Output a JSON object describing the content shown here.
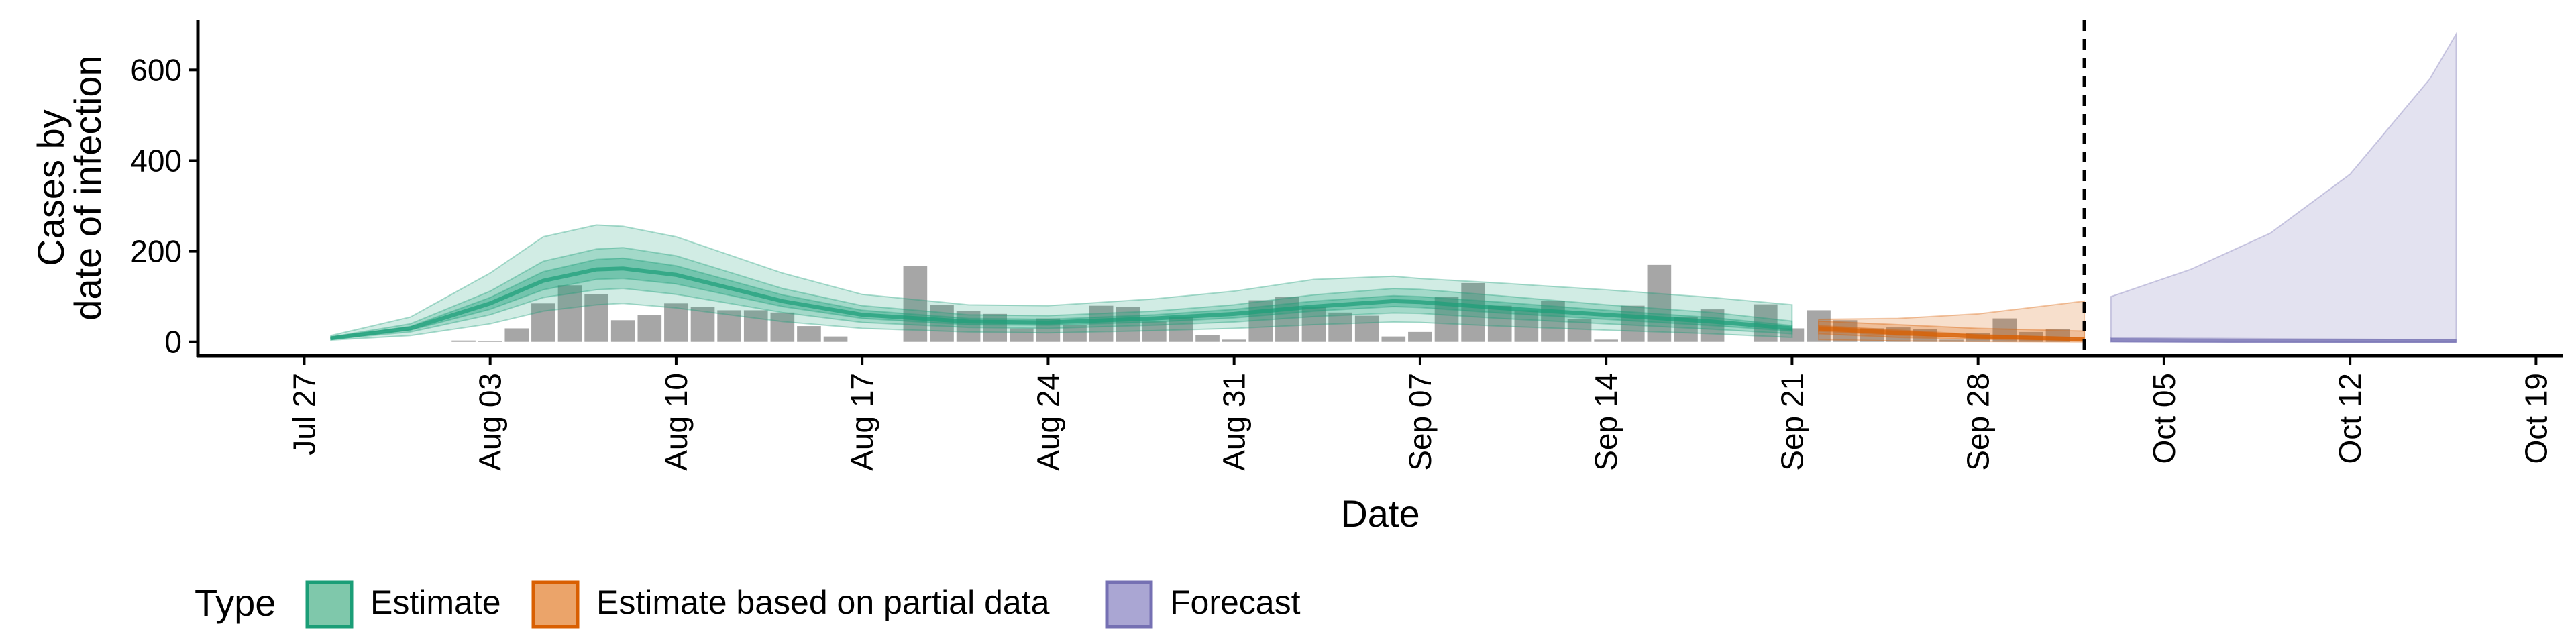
{
  "chart_data": {
    "type": "area",
    "title": "",
    "xlabel": "Date",
    "ylabel_lines": [
      "Cases by",
      "date of infection"
    ],
    "xlim": [
      "2020-07-23",
      "2020-10-20"
    ],
    "ylim": [
      -30,
      710
    ],
    "yticks": [
      0,
      200,
      400,
      600
    ],
    "xticks": [
      {
        "date": "2020-07-27",
        "label": "Jul 27"
      },
      {
        "date": "2020-08-03",
        "label": "Aug 03"
      },
      {
        "date": "2020-08-10",
        "label": "Aug 10"
      },
      {
        "date": "2020-08-17",
        "label": "Aug 17"
      },
      {
        "date": "2020-08-24",
        "label": "Aug 24"
      },
      {
        "date": "2020-08-31",
        "label": "Aug 31"
      },
      {
        "date": "2020-09-07",
        "label": "Sep 07"
      },
      {
        "date": "2020-09-14",
        "label": "Sep 14"
      },
      {
        "date": "2020-09-21",
        "label": "Sep 21"
      },
      {
        "date": "2020-09-28",
        "label": "Sep 28"
      },
      {
        "date": "2020-10-05",
        "label": "Oct 05"
      },
      {
        "date": "2020-10-12",
        "label": "Oct 12"
      },
      {
        "date": "2020-10-19",
        "label": "Oct 19"
      }
    ],
    "forecast_date": "2020-10-02",
    "grid": false,
    "legend_position": "bottom",
    "legend": {
      "title": "Type",
      "items": [
        {
          "label": "Estimate",
          "fill": "#7fc8ab",
          "stroke": "#1b9e77"
        },
        {
          "label": "Estimate based on partial data",
          "fill": "#eba46a",
          "stroke": "#d95f02"
        },
        {
          "label": "Forecast",
          "fill": "#aaa6d3",
          "stroke": "#7570b3"
        }
      ]
    },
    "colors": {
      "estimate": "#1b9e77",
      "partial": "#d95f02",
      "forecast": "#7570b3",
      "bars": "#a6a6a6"
    },
    "reported_cases": {
      "dates": [
        "2020-07-31",
        "2020-08-01",
        "2020-08-02",
        "2020-08-03",
        "2020-08-04",
        "2020-08-05",
        "2020-08-06",
        "2020-08-07",
        "2020-08-08",
        "2020-08-09",
        "2020-08-10",
        "2020-08-11",
        "2020-08-12",
        "2020-08-13",
        "2020-08-14",
        "2020-08-15",
        "2020-08-16",
        "2020-08-17",
        "2020-08-18",
        "2020-08-19",
        "2020-08-20",
        "2020-08-21",
        "2020-08-22",
        "2020-08-23",
        "2020-08-24",
        "2020-08-25",
        "2020-08-26",
        "2020-08-27",
        "2020-08-28",
        "2020-08-29",
        "2020-08-30",
        "2020-08-31",
        "2020-09-01",
        "2020-09-02",
        "2020-09-03",
        "2020-09-04",
        "2020-09-05",
        "2020-09-06",
        "2020-09-07",
        "2020-09-08",
        "2020-09-09",
        "2020-09-10",
        "2020-09-11",
        "2020-09-12",
        "2020-09-13",
        "2020-09-14",
        "2020-09-15",
        "2020-09-16",
        "2020-09-17",
        "2020-09-18",
        "2020-09-19",
        "2020-09-20",
        "2020-09-21",
        "2020-09-22",
        "2020-09-23",
        "2020-09-24",
        "2020-09-25",
        "2020-09-26",
        "2020-09-27",
        "2020-09-28",
        "2020-09-29",
        "2020-09-30",
        "2020-10-01",
        "2020-10-02"
      ],
      "values": [
        0,
        0,
        3,
        2,
        30,
        85,
        125,
        105,
        48,
        60,
        85,
        78,
        70,
        70,
        65,
        35,
        12,
        0,
        0,
        168,
        82,
        68,
        62,
        30,
        52,
        38,
        80,
        78,
        45,
        55,
        15,
        5,
        92,
        100,
        78,
        65,
        58,
        12,
        22,
        100,
        130,
        80,
        70,
        90,
        50,
        5,
        80,
        170,
        55,
        72,
        0,
        83,
        30,
        70,
        48,
        30,
        32,
        28,
        5,
        20,
        52,
        22,
        28,
        0
      ]
    },
    "estimate": {
      "dates": [
        "2020-07-28",
        "2020-07-31",
        "2020-08-03",
        "2020-08-05",
        "2020-08-07",
        "2020-08-08",
        "2020-08-10",
        "2020-08-14",
        "2020-08-17",
        "2020-08-21",
        "2020-08-24",
        "2020-08-28",
        "2020-08-31",
        "2020-09-03",
        "2020-09-06",
        "2020-09-07",
        "2020-09-10",
        "2020-09-14",
        "2020-09-18",
        "2020-09-21"
      ],
      "median": [
        8,
        30,
        85,
        135,
        160,
        162,
        148,
        90,
        60,
        45,
        43,
        52,
        62,
        78,
        90,
        88,
        75,
        60,
        45,
        30
      ],
      "lower_20": [
        7,
        26,
        72,
        115,
        138,
        140,
        128,
        78,
        52,
        38,
        37,
        44,
        53,
        68,
        78,
        76,
        64,
        50,
        36,
        24
      ],
      "upper_20": [
        10,
        34,
        98,
        155,
        182,
        185,
        168,
        104,
        70,
        52,
        50,
        60,
        72,
        90,
        102,
        100,
        88,
        70,
        54,
        36
      ],
      "lower_50": [
        6,
        22,
        60,
        98,
        115,
        118,
        105,
        65,
        43,
        32,
        30,
        37,
        44,
        56,
        64,
        63,
        52,
        40,
        28,
        18
      ],
      "upper_50": [
        11,
        40,
        112,
        178,
        205,
        208,
        190,
        118,
        80,
        60,
        58,
        68,
        82,
        104,
        118,
        116,
        102,
        82,
        65,
        46
      ],
      "lower_90": [
        4,
        14,
        40,
        68,
        82,
        85,
        75,
        45,
        30,
        22,
        20,
        25,
        30,
        38,
        44,
        43,
        35,
        26,
        18,
        10
      ],
      "upper_90": [
        14,
        55,
        152,
        232,
        258,
        255,
        232,
        152,
        105,
        82,
        80,
        95,
        112,
        138,
        145,
        140,
        130,
        115,
        98,
        82
      ]
    },
    "partial": {
      "dates": [
        "2020-09-22",
        "2020-09-25",
        "2020-09-28",
        "2020-10-02"
      ],
      "median": [
        30,
        20,
        12,
        6
      ],
      "lower_20": [
        24,
        15,
        9,
        4
      ],
      "upper_20": [
        36,
        26,
        16,
        9
      ],
      "lower_50": [
        18,
        10,
        6,
        2
      ],
      "upper_50": [
        46,
        38,
        30,
        24
      ],
      "lower_90": [
        5,
        2,
        1,
        0
      ],
      "upper_90": [
        50,
        52,
        62,
        90
      ]
    },
    "forecast": {
      "dates": [
        "2020-10-03",
        "2020-10-06",
        "2020-10-09",
        "2020-10-12",
        "2020-10-15",
        "2020-10-16"
      ],
      "median": [
        4,
        3,
        2,
        2,
        1,
        1
      ],
      "lower_90": [
        0,
        0,
        0,
        0,
        0,
        0
      ],
      "upper_90": [
        100,
        160,
        240,
        370,
        580,
        680
      ],
      "lower_50": [
        1,
        1,
        1,
        0,
        0,
        0
      ],
      "upper_50": [
        9,
        8,
        7,
        6,
        5,
        5
      ]
    }
  }
}
